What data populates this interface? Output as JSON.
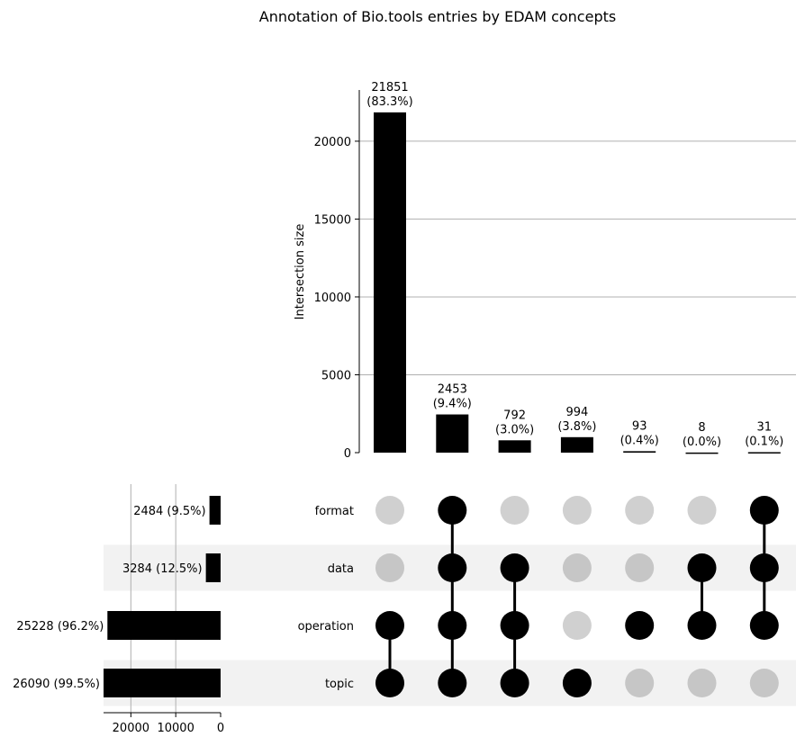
{
  "chart_data": {
    "type": "bar",
    "title": "Annotation of Bio.tools entries by EDAM concepts",
    "ylabel": "Intersection size",
    "ylim": [
      0,
      23000
    ],
    "yticks": [
      "0",
      "5000",
      "10000",
      "15000",
      "20000"
    ],
    "intersections": [
      {
        "size": 21851,
        "label": "21851",
        "pct": "(83.3%)",
        "sets": [
          "operation",
          "topic"
        ]
      },
      {
        "size": 2453,
        "label": "2453",
        "pct": "(9.4%)",
        "sets": [
          "format",
          "data",
          "operation",
          "topic"
        ]
      },
      {
        "size": 792,
        "label": "792",
        "pct": "(3.0%)",
        "sets": [
          "data",
          "operation",
          "topic"
        ]
      },
      {
        "size": 994,
        "label": "994",
        "pct": "(3.8%)",
        "sets": [
          "topic"
        ]
      },
      {
        "size": 93,
        "label": "93",
        "pct": "(0.4%)",
        "sets": [
          "operation"
        ]
      },
      {
        "size": 8,
        "label": "8",
        "pct": "(0.0%)",
        "sets": [
          "data",
          "operation"
        ]
      },
      {
        "size": 31,
        "label": "31",
        "pct": "(0.1%)",
        "sets": [
          "format",
          "data",
          "operation"
        ]
      }
    ],
    "sets": [
      {
        "name": "format",
        "size": 2484,
        "label": "2484 (9.5%)"
      },
      {
        "name": "data",
        "size": 3284,
        "label": "3284 (12.5%)"
      },
      {
        "name": "operation",
        "size": 25228,
        "label": "25228 (96.2%)"
      },
      {
        "name": "topic",
        "size": 26090,
        "label": "26090 (99.5%)"
      }
    ],
    "set_xlim": [
      0,
      26090
    ],
    "set_xticks": [
      "20000",
      "10000",
      "0"
    ],
    "grid": true,
    "colors": {
      "bar": "#000000",
      "dot_active": "#000000",
      "dot_inactive": "#d0d0d0",
      "stripe": "#f2f2f2",
      "grid": "#b0b0b0"
    }
  }
}
